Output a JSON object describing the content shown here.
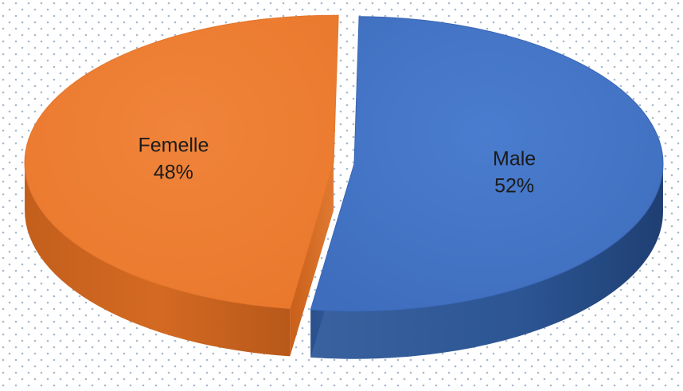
{
  "chart_data": {
    "type": "pie",
    "style": "3d-exploded",
    "title": "",
    "slices": [
      {
        "label": "Male",
        "value": 52,
        "display": "52%",
        "color": "#4472C4"
      },
      {
        "label": "Femelle",
        "value": 48,
        "display": "48%",
        "color": "#ED7D31"
      }
    ],
    "background": "dotted",
    "background_dot_color": "#a9b8cc",
    "legend": "none"
  }
}
